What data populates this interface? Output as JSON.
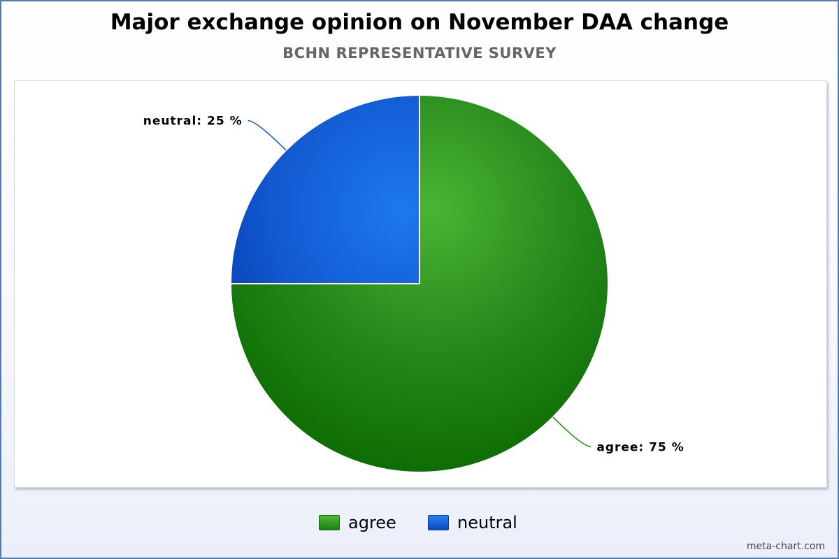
{
  "chart_data": {
    "type": "pie",
    "title": "Major exchange opinion on November DAA change",
    "subtitle": "BCHN REPRESENTATIVE SURVEY",
    "slices": [
      {
        "label": "agree",
        "value": 75,
        "value_label": "agree: 75 %",
        "color": "#1e8a12"
      },
      {
        "label": "neutral",
        "value": 25,
        "value_label": "neutral: 25 %",
        "color": "#1656cc"
      }
    ],
    "legend": {
      "placement": "bottom-center",
      "entries": [
        "agree",
        "neutral"
      ]
    }
  },
  "credit": "meta-chart.com"
}
